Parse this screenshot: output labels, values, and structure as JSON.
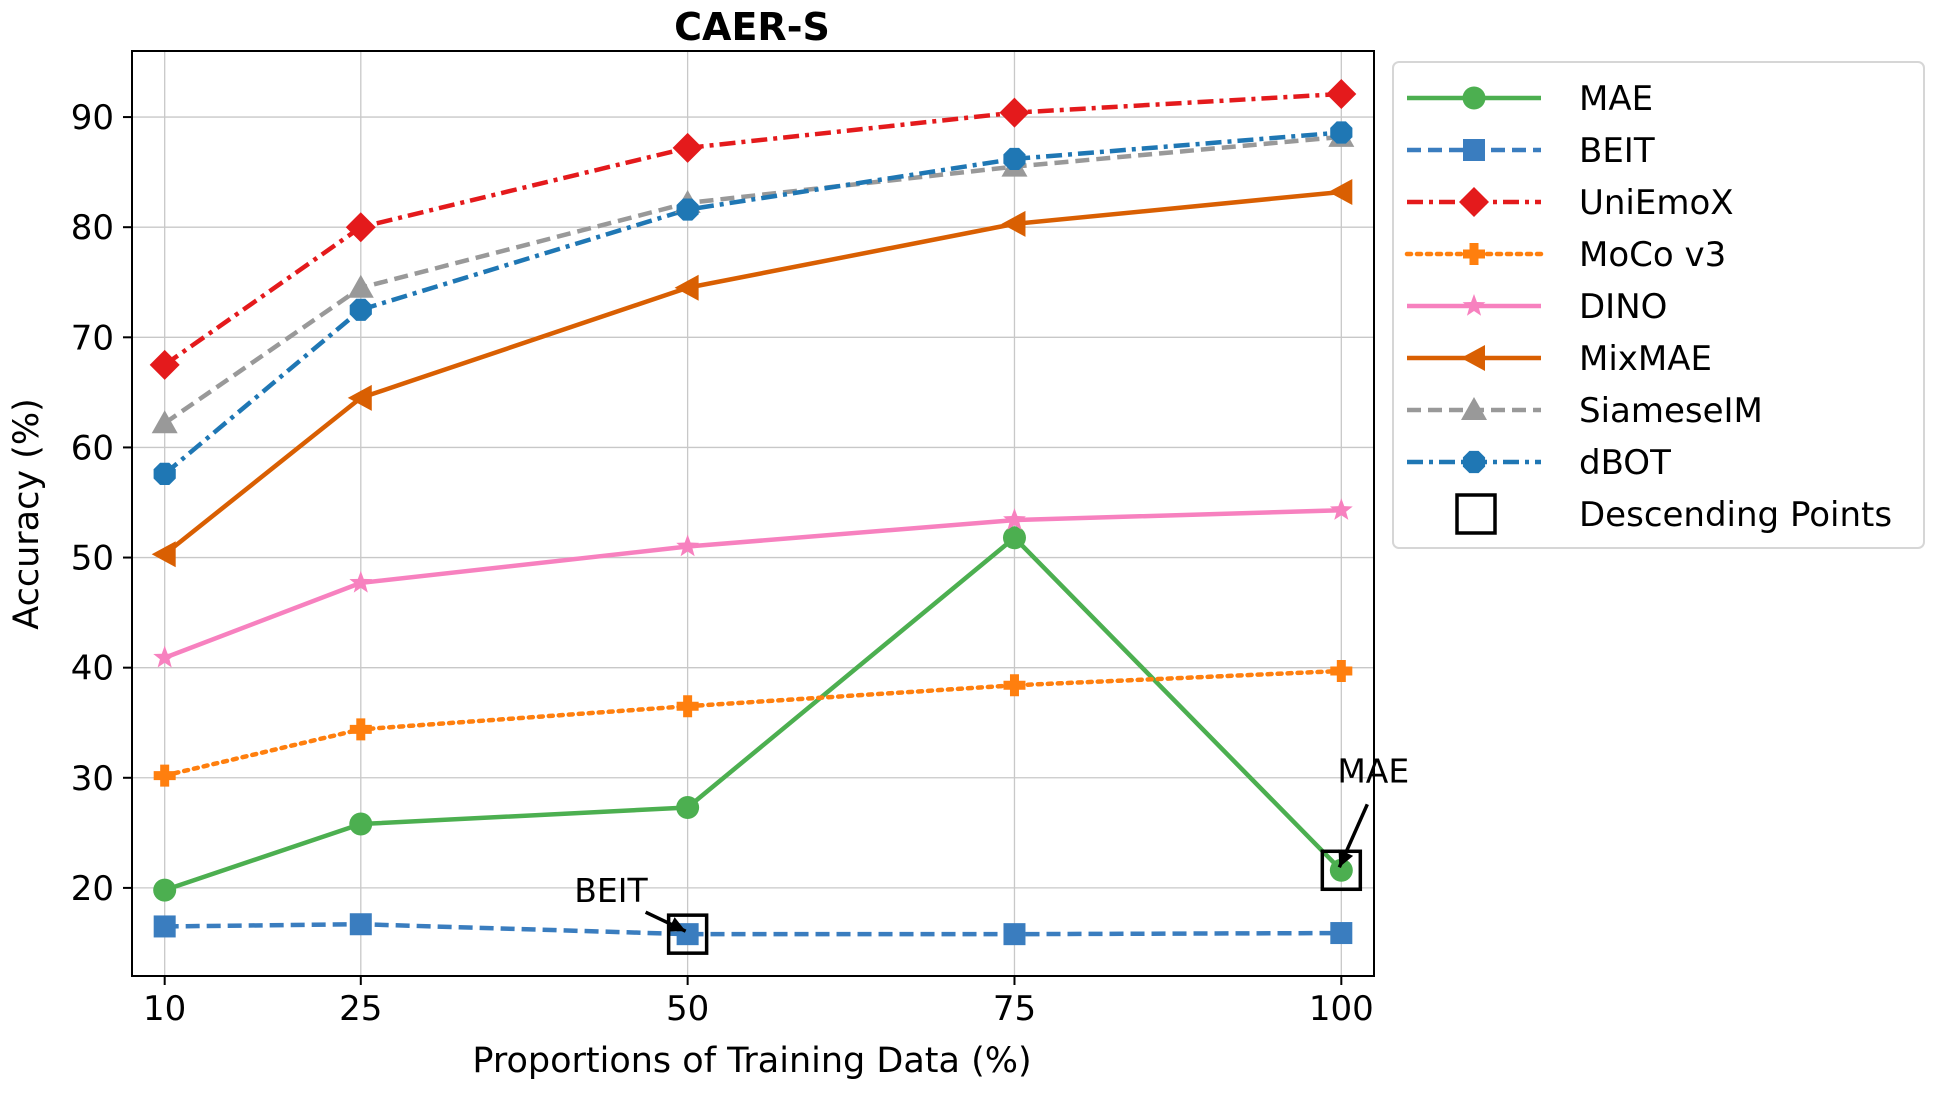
{
  "chart_data": {
    "type": "line",
    "title": "CAER-S",
    "xlabel": "Proportions of Training Data (%)",
    "ylabel": "Accuracy (%)",
    "x": [
      10,
      25,
      50,
      75,
      100
    ],
    "x_tick_labels": [
      "10",
      "25",
      "50",
      "75",
      "100"
    ],
    "y_ticks": [
      20,
      30,
      40,
      50,
      60,
      70,
      80,
      90
    ],
    "y_tick_labels": [
      "20",
      "30",
      "40",
      "50",
      "60",
      "70",
      "80",
      "90"
    ],
    "xlim": [
      7.5,
      102.5
    ],
    "ylim": [
      12,
      96
    ],
    "grid": true,
    "legend_position": "outside-right",
    "series": [
      {
        "name": "MAE",
        "values": [
          19.8,
          25.8,
          27.3,
          51.8,
          21.6
        ],
        "color": "#4caf50",
        "dash": "solid",
        "marker": "circle"
      },
      {
        "name": "BEIT",
        "values": [
          16.5,
          16.7,
          15.8,
          15.8,
          15.9
        ],
        "color": "#3a7dbf",
        "dash": "dashed",
        "marker": "square"
      },
      {
        "name": "UniEmoX",
        "values": [
          67.5,
          80.0,
          87.2,
          90.4,
          92.1
        ],
        "color": "#e41a1c",
        "dash": "dashdot",
        "marker": "diamond"
      },
      {
        "name": "MoCo v3",
        "values": [
          30.2,
          34.4,
          36.5,
          38.4,
          39.7
        ],
        "color": "#ff7f0e",
        "dash": "dotted",
        "marker": "plus"
      },
      {
        "name": "DINO",
        "values": [
          40.9,
          47.7,
          51.0,
          53.4,
          54.3
        ],
        "color": "#f781bf",
        "dash": "solid",
        "marker": "star"
      },
      {
        "name": "MixMAE",
        "values": [
          50.3,
          64.5,
          74.5,
          80.3,
          83.2
        ],
        "color": "#d95f02",
        "dash": "solid",
        "marker": "triangle-left"
      },
      {
        "name": "SiameseIM",
        "values": [
          62.2,
          74.5,
          82.2,
          85.5,
          88.2
        ],
        "color": "#999999",
        "dash": "dashed",
        "marker": "triangle-up"
      },
      {
        "name": "dBOT",
        "values": [
          57.6,
          72.5,
          81.6,
          86.2,
          88.6
        ],
        "color": "#1f77b4",
        "dash": "dashdot",
        "marker": "octagon"
      }
    ],
    "descending_points_label": "Descending Points",
    "descending_points": [
      {
        "series": "BEIT",
        "x": 50,
        "y": 15.8
      },
      {
        "series": "MAE",
        "x": 100,
        "y": 21.6
      }
    ],
    "annotations": [
      {
        "text": "BEIT",
        "target_x": 50,
        "target_y": 15.8
      },
      {
        "text": "MAE",
        "target_x": 100,
        "target_y": 21.6
      }
    ]
  }
}
